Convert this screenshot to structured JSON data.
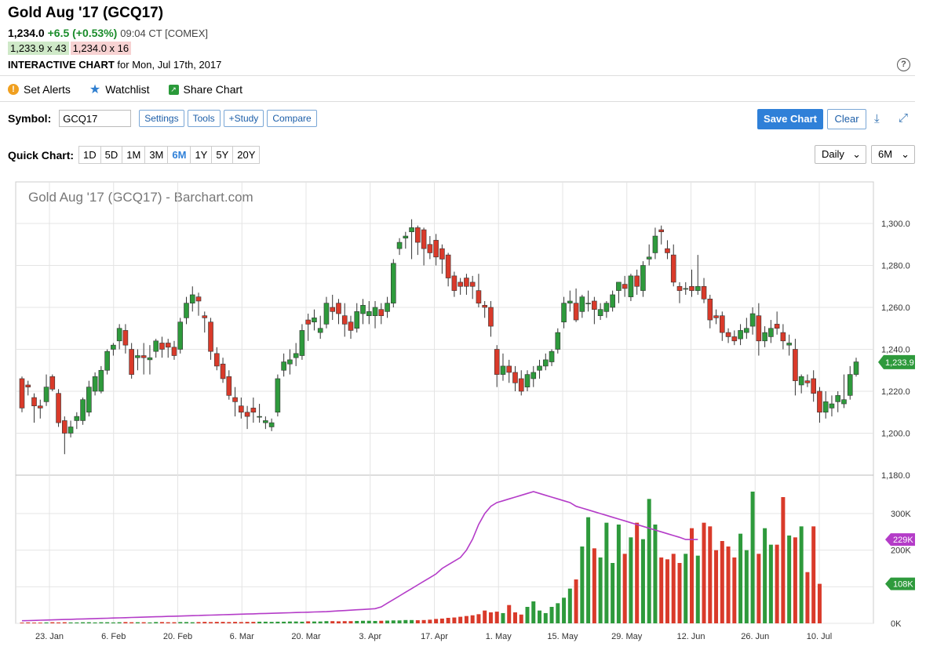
{
  "header": {
    "title": "Gold Aug '17 (GCQ17)",
    "last": "1,234.0",
    "change": "+6.5 (+0.53%)",
    "time": "09:04 CT [COMEX]",
    "bid": "1,233.9 x 43",
    "ask": "1,234.0 x 16",
    "interactive_label": "INTERACTIVE CHART",
    "interactive_date": "for Mon, Jul 17th, 2017",
    "help": "?"
  },
  "actions": {
    "alerts": "Set Alerts",
    "watchlist": "Watchlist",
    "share": "Share Chart"
  },
  "toolbar": {
    "symbol_label": "Symbol:",
    "symbol_value": "GCQ17",
    "settings": "Settings",
    "tools": "Tools",
    "study": "+Study",
    "compare": "Compare",
    "save": "Save Chart",
    "clear": "Clear",
    "download_icon": "⤓",
    "expand_icon": "⤢"
  },
  "quickchart": {
    "label": "Quick Chart:",
    "ranges": [
      "1D",
      "5D",
      "1M",
      "3M",
      "6M",
      "1Y",
      "5Y",
      "20Y"
    ],
    "selected": "6M",
    "interval": "Daily",
    "period": "6M"
  },
  "colors": {
    "up": "#2e9a3c",
    "down": "#d93a2a",
    "avg": "#b43cc8",
    "grid": "#e4e4e4",
    "last_tag": "#2e9a3c",
    "avg_tag": "#b43cc8"
  },
  "chart_data": {
    "type": "candlestick",
    "title": "Gold Aug '17 (GCQ17) - Barchart.com",
    "price_axis": {
      "ylim": [
        1180,
        1300
      ],
      "ticks": [
        "1,300.0",
        "1,280.0",
        "1,260.0",
        "1,240.0",
        "1,220.0",
        "1,200.0",
        "1,180.0"
      ],
      "tick_values": [
        1300,
        1280,
        1260,
        1240,
        1220,
        1200,
        1180
      ]
    },
    "volume_axis": {
      "ylim": [
        0,
        300000
      ],
      "ticks": [
        "300K",
        "200K",
        "100K",
        "0K"
      ],
      "tick_values": [
        300000,
        200000,
        100000,
        0
      ]
    },
    "x_tick_labels": [
      "23. Jan",
      "6. Feb",
      "20. Feb",
      "6. Mar",
      "20. Mar",
      "3. Apr",
      "17. Apr",
      "1. May",
      "15. May",
      "29. May",
      "12. Jun",
      "26. Jun",
      "10. Jul"
    ],
    "last_price_label": "1,233.9",
    "volume_avg_label": "229K",
    "volume_last_label": "108K",
    "ohlc": [
      [
        1226,
        1227,
        1210,
        1212
      ],
      [
        1223,
        1225,
        1218,
        1222
      ],
      [
        1217,
        1219,
        1205,
        1213
      ],
      [
        1213,
        1216,
        1207,
        1212
      ],
      [
        1215,
        1228,
        1213,
        1222
      ],
      [
        1227,
        1228,
        1220,
        1221
      ],
      [
        1219,
        1221,
        1203,
        1205
      ],
      [
        1206,
        1208,
        1190,
        1200
      ],
      [
        1200,
        1206,
        1198,
        1203
      ],
      [
        1206,
        1210,
        1202,
        1208
      ],
      [
        1206,
        1217,
        1204,
        1216
      ],
      [
        1210,
        1225,
        1208,
        1222
      ],
      [
        1220,
        1229,
        1218,
        1227
      ],
      [
        1220,
        1232,
        1219,
        1230
      ],
      [
        1230,
        1240,
        1228,
        1239
      ],
      [
        1240,
        1243,
        1237,
        1242
      ],
      [
        1244,
        1252,
        1240,
        1250
      ],
      [
        1249,
        1252,
        1238,
        1242
      ],
      [
        1240,
        1243,
        1226,
        1228
      ],
      [
        1236,
        1240,
        1230,
        1237
      ],
      [
        1237,
        1243,
        1228,
        1236
      ],
      [
        1235,
        1242,
        1228,
        1236
      ],
      [
        1239,
        1245,
        1236,
        1244
      ],
      [
        1243,
        1246,
        1236,
        1240
      ],
      [
        1243,
        1245,
        1236,
        1241
      ],
      [
        1241,
        1244,
        1235,
        1237
      ],
      [
        1240,
        1255,
        1238,
        1253
      ],
      [
        1255,
        1265,
        1252,
        1262
      ],
      [
        1262,
        1270,
        1258,
        1266
      ],
      [
        1265,
        1267,
        1256,
        1263
      ],
      [
        1256,
        1258,
        1248,
        1255
      ],
      [
        1253,
        1255,
        1235,
        1239
      ],
      [
        1238,
        1241,
        1230,
        1232
      ],
      [
        1233,
        1236,
        1224,
        1226
      ],
      [
        1227,
        1230,
        1216,
        1218
      ],
      [
        1217,
        1222,
        1208,
        1215
      ],
      [
        1213,
        1217,
        1207,
        1210
      ],
      [
        1210,
        1213,
        1202,
        1208
      ],
      [
        1212,
        1217,
        1205,
        1210
      ],
      [
        1208,
        1214,
        1205,
        1208
      ],
      [
        1205,
        1208,
        1202,
        1206
      ],
      [
        1203,
        1207,
        1201,
        1205
      ],
      [
        1210,
        1228,
        1208,
        1226
      ],
      [
        1230,
        1238,
        1227,
        1234
      ],
      [
        1233,
        1240,
        1228,
        1235
      ],
      [
        1236,
        1243,
        1232,
        1238
      ],
      [
        1237,
        1252,
        1235,
        1249
      ],
      [
        1254,
        1257,
        1244,
        1252
      ],
      [
        1253,
        1259,
        1249,
        1255
      ],
      [
        1248,
        1256,
        1245,
        1250
      ],
      [
        1252,
        1265,
        1250,
        1262
      ],
      [
        1260,
        1266,
        1254,
        1258
      ],
      [
        1262,
        1264,
        1252,
        1257
      ],
      [
        1256,
        1262,
        1246,
        1252
      ],
      [
        1253,
        1256,
        1245,
        1249
      ],
      [
        1250,
        1262,
        1248,
        1258
      ],
      [
        1257,
        1264,
        1252,
        1261
      ],
      [
        1256,
        1263,
        1252,
        1258
      ],
      [
        1256,
        1263,
        1250,
        1260
      ],
      [
        1259,
        1262,
        1252,
        1256
      ],
      [
        1258,
        1265,
        1255,
        1262
      ],
      [
        1262,
        1283,
        1260,
        1281
      ],
      [
        1288,
        1293,
        1285,
        1291
      ],
      [
        1293,
        1296,
        1288,
        1294
      ],
      [
        1296,
        1302,
        1283,
        1298
      ],
      [
        1298,
        1299,
        1285,
        1291
      ],
      [
        1297,
        1298,
        1280,
        1288
      ],
      [
        1290,
        1294,
        1283,
        1286
      ],
      [
        1292,
        1295,
        1280,
        1284
      ],
      [
        1288,
        1290,
        1276,
        1283
      ],
      [
        1285,
        1286,
        1270,
        1274
      ],
      [
        1275,
        1277,
        1265,
        1268
      ],
      [
        1272,
        1274,
        1266,
        1270
      ],
      [
        1274,
        1276,
        1266,
        1270
      ],
      [
        1272,
        1275,
        1264,
        1270
      ],
      [
        1268,
        1276,
        1260,
        1262
      ],
      [
        1261,
        1263,
        1255,
        1260
      ],
      [
        1260,
        1263,
        1246,
        1251
      ],
      [
        1240,
        1242,
        1222,
        1228
      ],
      [
        1228,
        1238,
        1225,
        1232
      ],
      [
        1232,
        1235,
        1224,
        1229
      ],
      [
        1229,
        1232,
        1220,
        1224
      ],
      [
        1226,
        1230,
        1218,
        1220
      ],
      [
        1222,
        1230,
        1220,
        1228
      ],
      [
        1226,
        1232,
        1222,
        1229
      ],
      [
        1230,
        1235,
        1226,
        1232
      ],
      [
        1232,
        1238,
        1230,
        1235
      ],
      [
        1234,
        1240,
        1232,
        1239
      ],
      [
        1240,
        1250,
        1238,
        1248
      ],
      [
        1253,
        1265,
        1250,
        1262
      ],
      [
        1262,
        1268,
        1258,
        1263
      ],
      [
        1262,
        1269,
        1253,
        1254
      ],
      [
        1258,
        1266,
        1255,
        1265
      ],
      [
        1262,
        1268,
        1258,
        1262
      ],
      [
        1263,
        1265,
        1252,
        1259
      ],
      [
        1256,
        1262,
        1254,
        1259
      ],
      [
        1258,
        1263,
        1255,
        1262
      ],
      [
        1260,
        1268,
        1258,
        1266
      ],
      [
        1268,
        1272,
        1262,
        1272
      ],
      [
        1271,
        1275,
        1265,
        1269
      ],
      [
        1265,
        1276,
        1263,
        1275
      ],
      [
        1275,
        1278,
        1266,
        1270
      ],
      [
        1268,
        1282,
        1265,
        1280
      ],
      [
        1283,
        1290,
        1280,
        1284
      ],
      [
        1286,
        1298,
        1283,
        1294
      ],
      [
        1297,
        1299,
        1290,
        1296
      ],
      [
        1288,
        1292,
        1283,
        1286
      ],
      [
        1285,
        1290,
        1270,
        1272
      ],
      [
        1270,
        1272,
        1262,
        1268
      ],
      [
        1269,
        1272,
        1266,
        1269
      ],
      [
        1270,
        1278,
        1265,
        1268
      ],
      [
        1268,
        1285,
        1266,
        1270
      ],
      [
        1270,
        1274,
        1262,
        1264
      ],
      [
        1264,
        1266,
        1250,
        1254
      ],
      [
        1256,
        1259,
        1252,
        1255
      ],
      [
        1256,
        1258,
        1244,
        1248
      ],
      [
        1248,
        1250,
        1243,
        1246
      ],
      [
        1246,
        1249,
        1242,
        1244
      ],
      [
        1245,
        1252,
        1242,
        1249
      ],
      [
        1248,
        1255,
        1245,
        1250
      ],
      [
        1251,
        1260,
        1247,
        1257
      ],
      [
        1256,
        1262,
        1237,
        1244
      ],
      [
        1244,
        1251,
        1241,
        1248
      ],
      [
        1246,
        1254,
        1243,
        1250
      ],
      [
        1252,
        1258,
        1247,
        1250
      ],
      [
        1248,
        1252,
        1240,
        1244
      ],
      [
        1242,
        1247,
        1237,
        1243
      ],
      [
        1240,
        1245,
        1218,
        1225
      ],
      [
        1223,
        1228,
        1219,
        1227
      ],
      [
        1225,
        1228,
        1222,
        1224
      ],
      [
        1226,
        1230,
        1215,
        1219
      ],
      [
        1220,
        1222,
        1205,
        1210
      ],
      [
        1210,
        1220,
        1207,
        1215
      ],
      [
        1212,
        1218,
        1208,
        1214
      ],
      [
        1215,
        1220,
        1210,
        1218
      ],
      [
        1214,
        1228,
        1212,
        1216
      ],
      [
        1218,
        1232,
        1216,
        1228
      ],
      [
        1228,
        1236,
        1227,
        1234
      ]
    ],
    "volume": [
      2000,
      2500,
      2000,
      2000,
      2500,
      3000,
      2500,
      3000,
      2500,
      2500,
      3000,
      3000,
      2500,
      3000,
      3000,
      2500,
      3000,
      3500,
      3000,
      3000,
      3000,
      2500,
      3500,
      3500,
      3000,
      3000,
      3500,
      3500,
      3000,
      3500,
      4000,
      3500,
      4000,
      4000,
      3500,
      4000,
      3500,
      4000,
      4000,
      4500,
      4500,
      4000,
      4500,
      4500,
      5000,
      5000,
      4500,
      5500,
      5000,
      5000,
      6000,
      6000,
      5500,
      6000,
      6000,
      6500,
      7000,
      7000,
      6500,
      7000,
      7500,
      8000,
      8000,
      9000,
      9000,
      8500,
      9000,
      10000,
      12000,
      13000,
      15000,
      16000,
      18000,
      20000,
      22000,
      25000,
      35000,
      30000,
      32000,
      28000,
      50000,
      30000,
      24000,
      45000,
      60000,
      35000,
      28000,
      45000,
      55000,
      70000,
      95000,
      120000,
      210000,
      290000,
      205000,
      180000,
      275000,
      165000,
      270000,
      190000,
      235000,
      275000,
      230000,
      340000,
      270000,
      180000,
      175000,
      190000,
      165000,
      190000,
      260000,
      185000,
      275000,
      265000,
      200000,
      225000,
      210000,
      180000,
      245000,
      200000,
      360000,
      190000,
      260000,
      215000,
      215000,
      345000,
      240000,
      235000,
      265000,
      140000,
      265000,
      108000
    ],
    "volume_avg": [
      7000,
      7500,
      8000,
      8500,
      9000,
      9500,
      10000,
      10500,
      11000,
      11500,
      12000,
      12500,
      13000,
      13500,
      14000,
      14500,
      15000,
      15500,
      16000,
      16500,
      17000,
      17500,
      18000,
      18500,
      19000,
      19500,
      20000,
      20500,
      21000,
      21500,
      22000,
      22500,
      23000,
      23500,
      24000,
      24500,
      25000,
      25500,
      26000,
      26500,
      27000,
      27500,
      28000,
      28500,
      29000,
      29500,
      30000,
      30500,
      31000,
      31500,
      32000,
      33000,
      34000,
      35000,
      36000,
      37000,
      38000,
      39000,
      40000,
      45000,
      55000,
      65000,
      75000,
      85000,
      95000,
      105000,
      115000,
      125000,
      135000,
      150000,
      160000,
      170000,
      180000,
      200000,
      230000,
      270000,
      300000,
      320000,
      330000,
      335000,
      340000,
      345000,
      350000,
      355000,
      360000,
      355000,
      350000,
      345000,
      340000,
      335000,
      330000,
      320000,
      315000,
      310000,
      305000,
      300000,
      295000,
      290000,
      285000,
      280000,
      275000,
      270000,
      265000,
      260000,
      255000,
      250000,
      245000,
      240000,
      235000,
      229000,
      229000,
      229000
    ]
  }
}
